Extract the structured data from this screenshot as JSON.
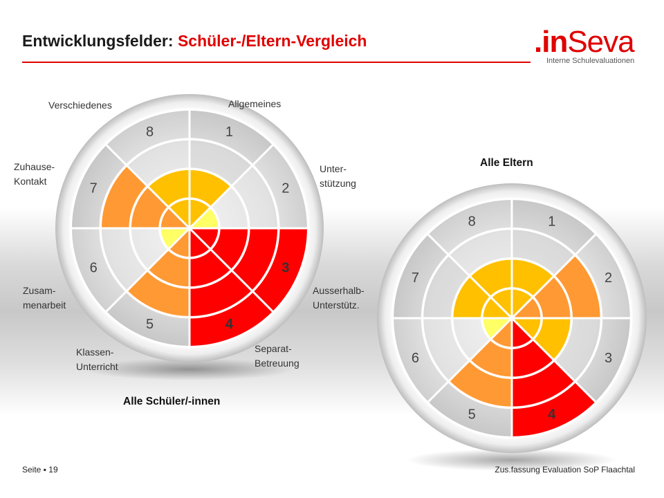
{
  "header": {
    "title_prefix": "Entwicklungsfelder:",
    "title_highlight": "Schüler-/Eltern-Vergleich",
    "brand_prefix": ".in",
    "brand_name": "Seva",
    "brand_tagline": "Interne Schulevaluationen"
  },
  "colors": {
    "level_1": "#ffff66",
    "level_2": "#ffc000",
    "level_3": "#ff9933",
    "level_4": "#ff0000",
    "disc": "#e6e6e6",
    "grid": "#ffffff",
    "accent": "#e00000"
  },
  "field_labels": [
    "Allgemeines",
    "Unter-\nstützung",
    "Ausserhalb-\nUnterstütz.",
    "Separat-\nBetreuung",
    "Klassen-\nUnterricht",
    "Zusam-\nmenarbeit",
    "Zuhause-\nKontakt",
    "Verschiedenes"
  ],
  "chart_data": [
    {
      "type": "polar-area",
      "title": "Alle Schüler/-innen",
      "categories": [
        "1",
        "2",
        "3",
        "4",
        "5",
        "6",
        "7",
        "8"
      ],
      "values": [
        2,
        1,
        4,
        4,
        3,
        1,
        3,
        2
      ],
      "rlim": [
        0,
        4
      ],
      "grid": true,
      "start": "top",
      "direction": "clockwise"
    },
    {
      "type": "polar-area",
      "title": "Alle Eltern",
      "categories": [
        "1",
        "2",
        "3",
        "4",
        "5",
        "6",
        "7",
        "8"
      ],
      "values": [
        2,
        3,
        2,
        4,
        3,
        1,
        2,
        2
      ],
      "rlim": [
        0,
        4
      ],
      "grid": true,
      "start": "top",
      "direction": "clockwise"
    }
  ],
  "footer": {
    "page_label": "Seite",
    "page_number": "19",
    "source": "Zus.fassung Evaluation SoP Flaachtal"
  }
}
